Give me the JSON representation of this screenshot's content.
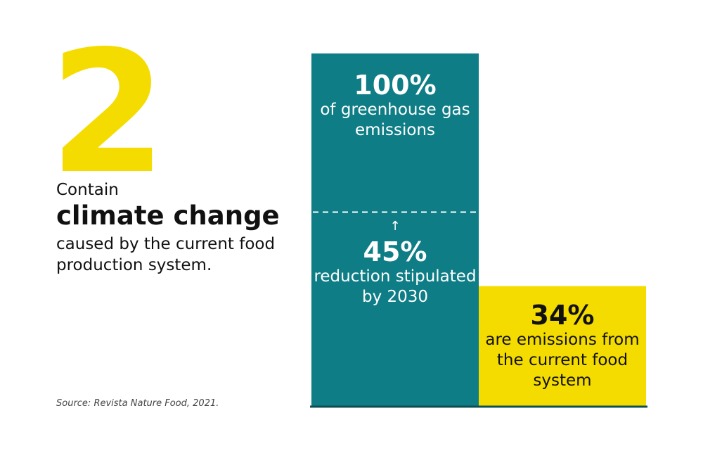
{
  "headline": {
    "number": "2",
    "lead_pre": "Contain",
    "lead_emphasis": "climate change",
    "lead_post": "caused by the current food production system."
  },
  "source": "Source: Revista Nature Food, 2021.",
  "colors": {
    "accent_yellow": "#f5dc00",
    "teal": "#0e7d85",
    "baseline": "#0b4f55",
    "text": "#111111"
  },
  "chart_data": {
    "type": "bar",
    "ylim": [
      0,
      100
    ],
    "bars": [
      {
        "value": 100,
        "label": "100%",
        "description": "of greenhouse gas emissions"
      },
      {
        "value": 34,
        "label": "34%",
        "description": "are emissions from the current food system"
      }
    ],
    "reference": {
      "value": 55,
      "label": "45%",
      "description": "reduction stipulated by 2030",
      "arrow": "↑"
    }
  }
}
